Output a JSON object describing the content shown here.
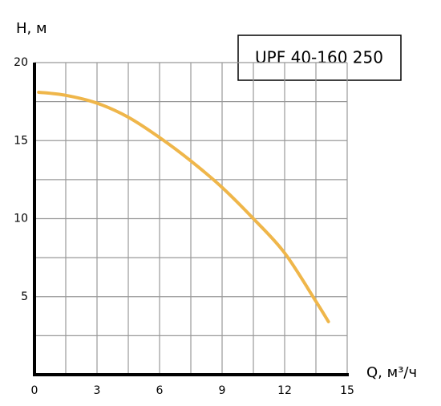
{
  "chart_data": {
    "type": "line",
    "title": "UPF 40-160 250",
    "y_label": "H, м",
    "x_label": "Q, м³/ч",
    "x": [
      0.2,
      1.5,
      3,
      4.5,
      6,
      7.5,
      9,
      10.5,
      12,
      13.5,
      14.1
    ],
    "series": [
      {
        "name": "UPF 40-160 250",
        "color": "#efb64a",
        "values": [
          18.1,
          17.9,
          17.4,
          16.5,
          15.2,
          13.7,
          12.0,
          10.0,
          7.8,
          4.7,
          3.4
        ]
      }
    ],
    "xlim": [
      0,
      15
    ],
    "ylim": [
      0,
      20
    ],
    "xticks": [
      0,
      3,
      6,
      9,
      12,
      15
    ],
    "yticks": [
      5,
      10,
      15,
      20
    ],
    "xgrid": [
      1.5,
      3,
      4.5,
      6,
      7.5,
      9,
      10.5,
      12,
      13.5,
      15
    ],
    "ygrid": [
      2.5,
      5,
      7.5,
      10,
      12.5,
      15,
      17.5,
      20
    ],
    "grid": true
  }
}
